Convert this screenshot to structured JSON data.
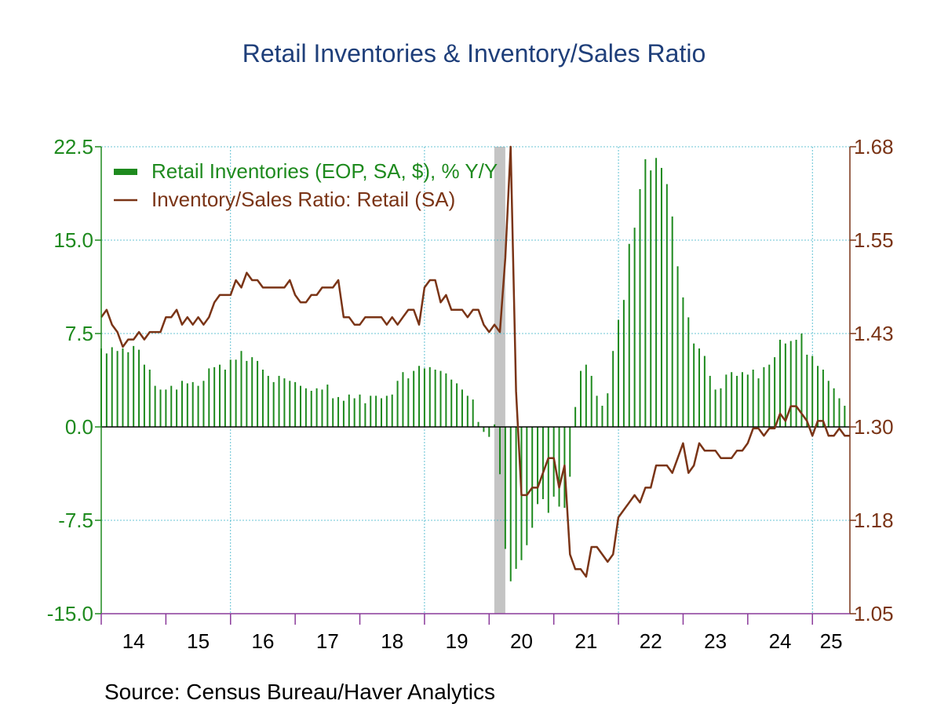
{
  "chart_data": {
    "type": "bar",
    "title": "Retail Inventories & Inventory/Sales Ratio",
    "source": "Source:  Census Bureau/Haver Analytics",
    "x_tick_labels": [
      "14",
      "15",
      "16",
      "17",
      "18",
      "19",
      "20",
      "21",
      "22",
      "23",
      "24",
      "25"
    ],
    "x_range": [
      2014.0,
      2025.58
    ],
    "recession": {
      "start": 2020.08,
      "end": 2020.25
    },
    "y_left": {
      "ticks": [
        "22.5",
        "15.0",
        "7.5",
        "0.0",
        "-7.5",
        "-15.0"
      ],
      "range": [
        -15.0,
        22.5
      ],
      "color": "#1e8a1e"
    },
    "y_right": {
      "ticks": [
        "1.68",
        "1.55",
        "1.43",
        "1.30",
        "1.18",
        "1.05"
      ],
      "range": [
        1.05,
        1.68
      ],
      "color": "#7a3416"
    },
    "legend": [
      "Retail Inventories (EOP, SA, $), % Y/Y",
      "Inventory/Sales Ratio: Retail (SA)"
    ],
    "series": [
      {
        "name": "Retail Inventories (EOP, SA, $), % Y/Y",
        "kind": "bar",
        "axis": "left",
        "color": "#1e8a1e",
        "start": 2014.0,
        "step": 0.08333,
        "values": [
          6.3,
          5.9,
          6.4,
          6.1,
          6.3,
          6.0,
          6.5,
          6.2,
          5.0,
          4.6,
          3.3,
          3.0,
          3.0,
          3.3,
          3.0,
          3.7,
          3.5,
          3.6,
          3.3,
          3.7,
          4.7,
          4.8,
          5.0,
          4.6,
          5.4,
          5.4,
          6.1,
          5.3,
          5.6,
          5.3,
          4.6,
          4.1,
          3.6,
          4.1,
          3.9,
          3.7,
          3.6,
          3.3,
          3.1,
          2.9,
          3.1,
          3.0,
          3.4,
          2.3,
          2.4,
          2.1,
          2.6,
          2.3,
          2.6,
          1.9,
          2.5,
          2.5,
          2.3,
          2.5,
          2.6,
          3.7,
          4.4,
          3.9,
          4.5,
          4.9,
          4.7,
          4.8,
          4.6,
          4.5,
          4.3,
          3.8,
          3.5,
          3.0,
          2.5,
          2.2,
          0.4,
          -0.4,
          -0.8,
          0.2,
          -3.8,
          -9.8,
          -12.4,
          -11.4,
          -10.7,
          -9.5,
          -8.1,
          -6.2,
          -5.8,
          -6.9,
          -5.6,
          -6.4,
          -6.5,
          -4.0,
          1.6,
          4.5,
          5.0,
          4.1,
          2.5,
          1.7,
          2.7,
          6.1,
          8.6,
          10.2,
          14.7,
          16.0,
          19.1,
          21.5,
          20.6,
          21.6,
          20.8,
          19.5,
          16.9,
          12.9,
          10.4,
          8.8,
          6.7,
          6.3,
          5.7,
          4.1,
          3.0,
          3.1,
          4.2,
          4.4,
          4.1,
          4.4,
          4.2,
          4.6,
          3.9,
          4.8,
          5.0,
          5.6,
          7.0,
          6.7,
          6.9,
          7.0,
          7.5,
          5.8,
          5.7,
          4.9,
          4.6,
          3.7,
          3.1,
          2.3,
          1.7
        ]
      },
      {
        "name": "Inventory/Sales Ratio: Retail (SA)",
        "kind": "line",
        "axis": "right",
        "color": "#7a3416",
        "start": 2014.0,
        "step": 0.08333,
        "values": [
          1.45,
          1.46,
          1.44,
          1.43,
          1.41,
          1.42,
          1.42,
          1.43,
          1.42,
          1.43,
          1.43,
          1.43,
          1.45,
          1.45,
          1.46,
          1.44,
          1.45,
          1.44,
          1.45,
          1.44,
          1.45,
          1.47,
          1.48,
          1.48,
          1.48,
          1.5,
          1.49,
          1.51,
          1.5,
          1.5,
          1.49,
          1.49,
          1.49,
          1.49,
          1.49,
          1.5,
          1.48,
          1.47,
          1.47,
          1.48,
          1.48,
          1.49,
          1.49,
          1.49,
          1.5,
          1.45,
          1.45,
          1.44,
          1.44,
          1.45,
          1.45,
          1.45,
          1.45,
          1.44,
          1.45,
          1.44,
          1.45,
          1.46,
          1.46,
          1.44,
          1.49,
          1.5,
          1.5,
          1.47,
          1.48,
          1.46,
          1.46,
          1.46,
          1.45,
          1.46,
          1.46,
          1.44,
          1.43,
          1.44,
          1.43,
          1.53,
          1.68,
          1.35,
          1.21,
          1.21,
          1.22,
          1.22,
          1.24,
          1.26,
          1.26,
          1.22,
          1.25,
          1.13,
          1.11,
          1.11,
          1.1,
          1.14,
          1.14,
          1.13,
          1.12,
          1.13,
          1.18,
          1.19,
          1.2,
          1.21,
          1.2,
          1.22,
          1.22,
          1.25,
          1.25,
          1.25,
          1.24,
          1.26,
          1.28,
          1.24,
          1.25,
          1.28,
          1.27,
          1.27,
          1.27,
          1.26,
          1.26,
          1.26,
          1.27,
          1.27,
          1.28,
          1.3,
          1.3,
          1.29,
          1.3,
          1.3,
          1.32,
          1.31,
          1.33,
          1.33,
          1.32,
          1.31,
          1.29,
          1.31,
          1.31,
          1.29,
          1.29,
          1.3,
          1.29,
          1.29
        ]
      }
    ]
  }
}
